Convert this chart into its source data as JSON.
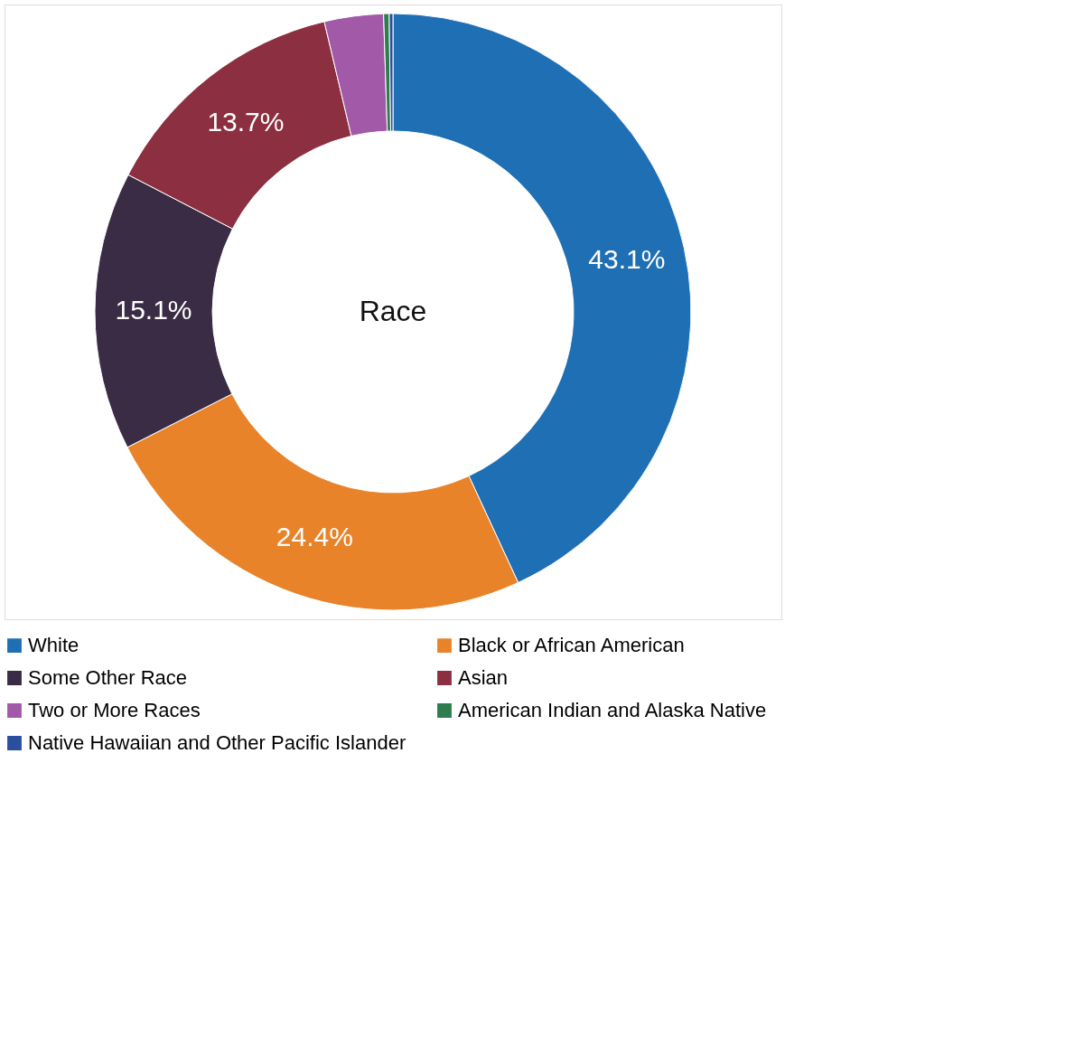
{
  "chart_data": {
    "type": "donut",
    "title": "Race",
    "categories": [
      "White",
      "Black or African American",
      "Some Other Race",
      "Asian",
      "Two or More Races",
      "American Indian and Alaska Native",
      "Native Hawaiian and Other Pacific Islander"
    ],
    "values": [
      43.1,
      24.4,
      15.1,
      13.7,
      3.2,
      0.3,
      0.2
    ],
    "colors": [
      "#1f6fb4",
      "#e8832a",
      "#3a2c45",
      "#8c3041",
      "#a25aa8",
      "#2e7d4f",
      "#2b4fa0"
    ],
    "value_labels": [
      "43.1%",
      "24.4%",
      "15.1%",
      "13.7%",
      null,
      null,
      null
    ],
    "legend": "bottom"
  }
}
